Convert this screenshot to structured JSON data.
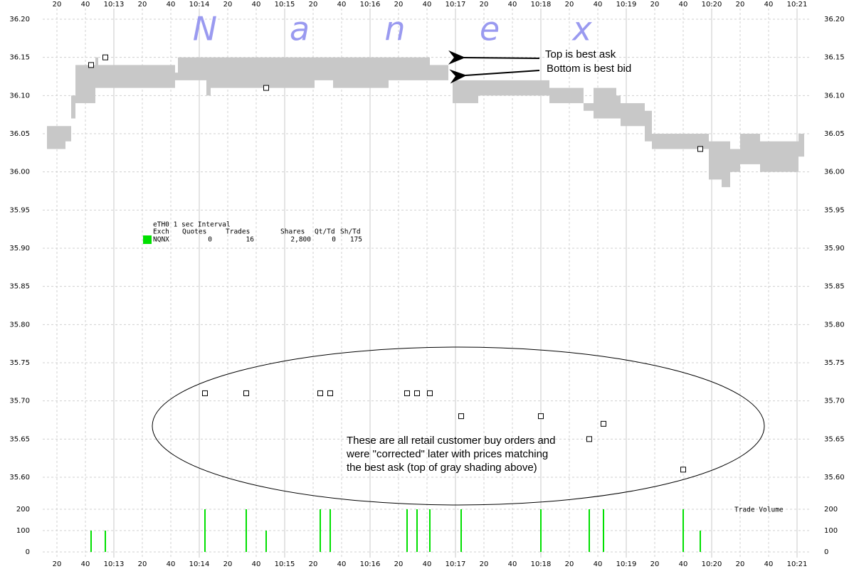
{
  "chart_data": {
    "type": "bidask",
    "watermark": [
      "N",
      "a",
      "n",
      "e",
      "x"
    ],
    "xlim": [
      "10:12:10",
      "10:21:10"
    ],
    "xticks": [
      {
        "value": "10:12:20",
        "label": "20"
      },
      {
        "value": "10:12:40",
        "label": "40"
      },
      {
        "value": "10:13:00",
        "label": "10:13"
      },
      {
        "value": "10:13:20",
        "label": "20"
      },
      {
        "value": "10:13:40",
        "label": "40"
      },
      {
        "value": "10:14:00",
        "label": "10:14"
      },
      {
        "value": "10:14:20",
        "label": "20"
      },
      {
        "value": "10:14:40",
        "label": "40"
      },
      {
        "value": "10:15:00",
        "label": "10:15"
      },
      {
        "value": "10:15:20",
        "label": "20"
      },
      {
        "value": "10:15:40",
        "label": "40"
      },
      {
        "value": "10:16:00",
        "label": "10:16"
      },
      {
        "value": "10:16:20",
        "label": "20"
      },
      {
        "value": "10:16:40",
        "label": "40"
      },
      {
        "value": "10:17:00",
        "label": "10:17"
      },
      {
        "value": "10:17:20",
        "label": "20"
      },
      {
        "value": "10:17:40",
        "label": "40"
      },
      {
        "value": "10:18:00",
        "label": "10:18"
      },
      {
        "value": "10:18:20",
        "label": "20"
      },
      {
        "value": "10:18:40",
        "label": "40"
      },
      {
        "value": "10:19:00",
        "label": "10:19"
      },
      {
        "value": "10:19:20",
        "label": "20"
      },
      {
        "value": "10:19:40",
        "label": "40"
      },
      {
        "value": "10:20:00",
        "label": "10:20"
      },
      {
        "value": "10:20:20",
        "label": "20"
      },
      {
        "value": "10:20:40",
        "label": "40"
      },
      {
        "value": "10:21:00",
        "label": "10:21"
      }
    ],
    "ylim": [
      35.6,
      36.2
    ],
    "yticks": [
      {
        "value": 36.2,
        "label": "36.20"
      },
      {
        "value": 36.15,
        "label": "36.15"
      },
      {
        "value": 36.1,
        "label": "36.10"
      },
      {
        "value": 36.05,
        "label": "36.05"
      },
      {
        "value": 36.0,
        "label": "36.00"
      },
      {
        "value": 35.95,
        "label": "35.95"
      },
      {
        "value": 35.9,
        "label": "35.90"
      },
      {
        "value": 35.85,
        "label": "35.85"
      },
      {
        "value": 35.8,
        "label": "35.80"
      },
      {
        "value": 35.75,
        "label": "35.75"
      },
      {
        "value": 35.7,
        "label": "35.70"
      },
      {
        "value": 35.65,
        "label": "35.65"
      },
      {
        "value": 35.6,
        "label": "35.60"
      }
    ],
    "grid": true,
    "quotes": {
      "color": "#c8c8c8",
      "start": [
        "10:12:13",
        "10:12:26",
        "10:12:30",
        "10:12:33",
        "10:12:47",
        "10:12:49",
        "10:13:43",
        "10:13:45",
        "10:14:05",
        "10:14:08",
        "10:15:21",
        "10:15:34",
        "10:16:13",
        "10:16:42",
        "10:16:58",
        "10:17:16",
        "10:18:06",
        "10:18:30",
        "10:18:37",
        "10:18:53",
        "10:18:56",
        "10:19:13",
        "10:19:18",
        "10:19:58",
        "10:20:07",
        "10:20:13",
        "10:20:20",
        "10:20:34",
        "10:20:47",
        "10:21:01"
      ],
      "end": [
        "10:12:26",
        "10:12:30",
        "10:12:33",
        "10:12:47",
        "10:12:49",
        "10:13:43",
        "10:13:45",
        "10:14:05",
        "10:14:08",
        "10:15:21",
        "10:15:34",
        "10:16:13",
        "10:16:42",
        "10:16:55",
        "10:17:16",
        "10:18:06",
        "10:18:30",
        "10:18:37",
        "10:18:53",
        "10:18:56",
        "10:19:13",
        "10:19:18",
        "10:19:58",
        "10:20:07",
        "10:20:13",
        "10:20:20",
        "10:20:34",
        "10:20:47",
        "10:21:01",
        "10:21:05"
      ],
      "ask": [
        36.06,
        36.06,
        36.1,
        36.14,
        36.15,
        36.14,
        36.13,
        36.15,
        36.15,
        36.15,
        36.15,
        36.15,
        36.15,
        36.14,
        36.12,
        36.12,
        36.11,
        36.09,
        36.11,
        36.1,
        36.09,
        36.08,
        36.05,
        36.04,
        36.04,
        36.03,
        36.05,
        36.04,
        36.04,
        36.05
      ],
      "bid": [
        36.03,
        36.04,
        36.07,
        36.09,
        36.11,
        36.11,
        36.12,
        36.12,
        36.1,
        36.11,
        36.12,
        36.11,
        36.12,
        36.12,
        36.09,
        36.1,
        36.09,
        36.08,
        36.07,
        36.07,
        36.06,
        36.04,
        36.03,
        35.99,
        35.98,
        36.0,
        36.01,
        36.0,
        36.0,
        36.02
      ]
    },
    "trades": {
      "x": [
        "10:12:44",
        "10:12:54",
        "10:14:04",
        "10:14:33",
        "10:14:47",
        "10:15:25",
        "10:15:32",
        "10:16:26",
        "10:16:33",
        "10:16:42",
        "10:17:04",
        "10:18:00",
        "10:18:34",
        "10:18:44",
        "10:19:40",
        "10:19:52"
      ],
      "values": [
        36.14,
        36.15,
        35.71,
        35.71,
        36.11,
        35.71,
        35.71,
        35.71,
        35.71,
        35.71,
        35.68,
        35.68,
        35.65,
        35.67,
        35.61,
        36.03
      ]
    },
    "volume": {
      "title": "Trade Volume",
      "color": "#00e000",
      "values": [
        100,
        100,
        200,
        200,
        100,
        200,
        200,
        200,
        200,
        200,
        200,
        200,
        200,
        200,
        200,
        100
      ],
      "ylim": [
        0,
        200
      ],
      "yticks": [
        0,
        100,
        200
      ]
    },
    "info": {
      "title": "eTH0 1 sec Interval",
      "color": "#00e000",
      "columns": [
        "Exch",
        "Quotes",
        "Trades",
        "Shares",
        "Qt/Td",
        "Sh/Td"
      ],
      "rows": [
        [
          "NQNX",
          "0",
          "16",
          "2,800",
          "0",
          "175"
        ]
      ]
    },
    "annotations": [
      "Top is best ask",
      "Bottom is best bid",
      "These are all retail customer buy orders and",
      "were \"corrected\" later with prices matching",
      "the best ask (top of gray shading above)"
    ]
  }
}
